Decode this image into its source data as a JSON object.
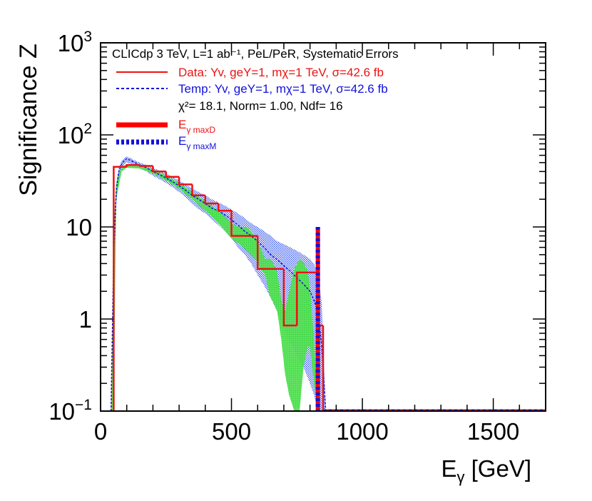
{
  "chart_data": {
    "type": "histogram",
    "scale": "log-y",
    "xlabel_main": "E",
    "xlabel_sub": "γ",
    "xlabel_unit": " [GeV]",
    "ylabel": "Significance Z",
    "xlim": [
      0,
      1700
    ],
    "ylim": [
      0.1,
      1000
    ],
    "x_ticks": [
      {
        "value": 0,
        "label": "0"
      },
      {
        "value": 500,
        "label": "500"
      },
      {
        "value": 1000,
        "label": "1000"
      },
      {
        "value": 1500,
        "label": "1500"
      }
    ],
    "y_ticks": [
      {
        "value": 0.1,
        "base": "10",
        "exp": "−1"
      },
      {
        "value": 1,
        "base": "1",
        "exp": ""
      },
      {
        "value": 10,
        "base": "10",
        "exp": ""
      },
      {
        "value": 100,
        "base": "10",
        "exp": "2"
      },
      {
        "value": 1000,
        "base": "10",
        "exp": "3"
      }
    ],
    "header": "CLICdp 3 TeV, L=1 ab⁻¹, PeL/PeR, Systematic Errors",
    "legend": {
      "data": "Data: Yv, geY=1, mχ=1 TeV, σ=42.6 fb",
      "temp": "Temp: Yv, geY=1, mχ=1 TeV, σ=42.6 fb",
      "chi2": "χ²= 18.1, Norm=  1.00, Ndf= 16",
      "emaxd_main": "E",
      "emaxd_sub": "γ maxD",
      "emaxm_main": "E",
      "emaxm_sub": "γ maxM"
    },
    "colors": {
      "data": "#ee1111",
      "temp": "#1111dd",
      "green_band": "#44dd44",
      "blue_band": "#3355ee",
      "text": "#000000"
    },
    "data_histogram": {
      "bin_edges": [
        50,
        100,
        150,
        200,
        250,
        300,
        350,
        400,
        450,
        500,
        550,
        600,
        650,
        700,
        750,
        800,
        830,
        850
      ],
      "values": [
        45,
        47,
        46,
        40,
        35,
        29,
        22,
        18,
        15,
        8,
        8,
        3.5,
        3.5,
        0.85,
        3.2,
        3.2,
        0.85
      ]
    },
    "template_curve": {
      "x": [
        40,
        50,
        60,
        70,
        80,
        90,
        100,
        115,
        130,
        150,
        175,
        200,
        225,
        250,
        275,
        300,
        325,
        350,
        375,
        400,
        425,
        450,
        475,
        500,
        525,
        550,
        575,
        600,
        625,
        650,
        675,
        700,
        725,
        750,
        775,
        800,
        815,
        830,
        845,
        860
      ],
      "y": [
        0.1,
        5,
        25,
        40,
        48,
        52,
        55,
        53,
        50,
        47,
        44,
        40,
        37,
        34,
        31,
        28,
        25,
        22,
        20,
        18,
        16,
        15,
        13.5,
        12,
        10.5,
        9,
        8,
        7,
        6,
        5,
        4.4,
        3.8,
        3.3,
        2.8,
        2.4,
        2,
        1.6,
        1.2,
        0.5,
        0.1
      ]
    },
    "green_band": {
      "x": [
        40,
        50,
        60,
        80,
        100,
        150,
        200,
        250,
        300,
        350,
        400,
        450,
        500,
        530,
        560,
        590,
        610,
        630,
        645,
        660,
        675,
        690,
        705,
        720,
        740,
        760,
        775,
        790,
        800,
        815,
        830
      ],
      "upper": [
        0.1,
        10,
        30,
        45,
        48,
        47,
        42,
        36,
        30,
        24,
        19,
        15,
        11,
        10,
        10,
        8,
        6,
        4.5,
        4.5,
        4,
        3.2,
        1.6,
        1.2,
        2,
        3.5,
        4.5,
        4,
        3.5,
        2.2,
        0.6,
        0.1
      ],
      "lower": [
        0.1,
        0.1,
        20,
        40,
        44,
        43,
        38,
        32,
        26,
        20,
        15,
        11,
        7.5,
        6.5,
        5.5,
        4.5,
        3.5,
        3,
        1.8,
        1.5,
        1.2,
        0.6,
        0.25,
        0.15,
        0.1,
        0.1,
        0.3,
        0.5,
        0.5,
        0.2,
        0.1
      ]
    },
    "blue_band": {
      "x": [
        40,
        50,
        60,
        70,
        80,
        90,
        100,
        115,
        130,
        150,
        175,
        200,
        225,
        250,
        275,
        300,
        325,
        350,
        375,
        400,
        425,
        450,
        475,
        500,
        525,
        550,
        575,
        600,
        625,
        650,
        675,
        700,
        725,
        750,
        775,
        800,
        815,
        830,
        845,
        860
      ],
      "upper": [
        0.1,
        6,
        30,
        45,
        52,
        56,
        58,
        56,
        53,
        50,
        47,
        44,
        41,
        38,
        35,
        32,
        29,
        26,
        24,
        22,
        20,
        18.5,
        17,
        15.5,
        14,
        12.5,
        11,
        10,
        9,
        8,
        7,
        6.5,
        6,
        5.5,
        5,
        4.5,
        4,
        3,
        1.5,
        0.1
      ],
      "lower": [
        0.1,
        1,
        18,
        32,
        42,
        47,
        50,
        48,
        46,
        43,
        40,
        36,
        33,
        30,
        27,
        24,
        21,
        18,
        15.5,
        14,
        12,
        10.5,
        9,
        7.5,
        6,
        5,
        4,
        3,
        2.3,
        1.7,
        1.2,
        0.8,
        0.55,
        0.4,
        0.3,
        0.2,
        0.15,
        0.1,
        0.1,
        0.1
      ]
    },
    "emax_data_value": 830,
    "emax_template_value": 830,
    "emax_height": 10,
    "underflow_level": 0.1
  }
}
